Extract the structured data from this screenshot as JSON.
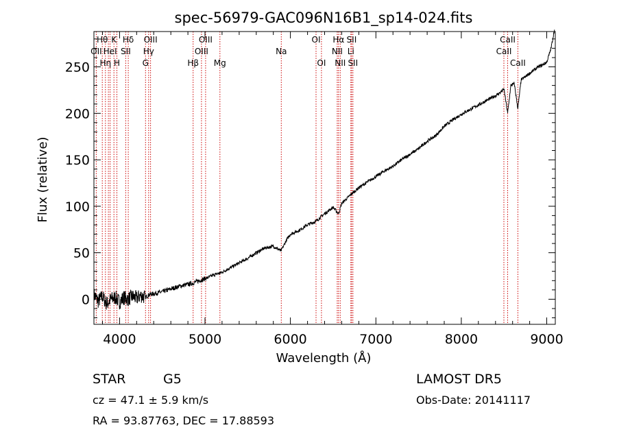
{
  "chart_data": {
    "type": "line",
    "title": "spec-56979-GAC096N16B1_sp14-024.fits",
    "xlabel": "Wavelength (Å)",
    "ylabel": "Flux (relative)",
    "xlim": [
      3700,
      9100
    ],
    "ylim": [
      -27,
      288
    ],
    "xticks": [
      4000,
      5000,
      6000,
      7000,
      8000,
      9000
    ],
    "yticks": [
      0,
      50,
      100,
      150,
      200,
      250
    ],
    "grid": false,
    "series": [
      {
        "points": [
          [
            3700,
            5
          ],
          [
            3750,
            -2
          ],
          [
            3800,
            3
          ],
          [
            3850,
            -5
          ],
          [
            3900,
            0
          ],
          [
            3950,
            2
          ],
          [
            4000,
            -3
          ],
          [
            4050,
            2
          ],
          [
            4100,
            0
          ],
          [
            4150,
            3
          ],
          [
            4200,
            1
          ],
          [
            4250,
            4
          ],
          [
            4300,
            2
          ],
          [
            4350,
            5
          ],
          [
            4400,
            6
          ],
          [
            4500,
            8
          ],
          [
            4600,
            11
          ],
          [
            4700,
            14
          ],
          [
            4800,
            16
          ],
          [
            4850,
            17
          ],
          [
            4900,
            19
          ],
          [
            5000,
            22
          ],
          [
            5100,
            26
          ],
          [
            5200,
            29
          ],
          [
            5300,
            34
          ],
          [
            5400,
            39
          ],
          [
            5500,
            44
          ],
          [
            5600,
            50
          ],
          [
            5700,
            55
          ],
          [
            5800,
            57
          ],
          [
            5890,
            52
          ],
          [
            5950,
            63
          ],
          [
            6000,
            70
          ],
          [
            6100,
            74
          ],
          [
            6200,
            80
          ],
          [
            6300,
            84
          ],
          [
            6400,
            92
          ],
          [
            6500,
            99
          ],
          [
            6563,
            92
          ],
          [
            6600,
            103
          ],
          [
            6700,
            112
          ],
          [
            6800,
            120
          ],
          [
            6900,
            126
          ],
          [
            7000,
            132
          ],
          [
            7100,
            138
          ],
          [
            7200,
            143
          ],
          [
            7300,
            150
          ],
          [
            7400,
            156
          ],
          [
            7500,
            162
          ],
          [
            7600,
            170
          ],
          [
            7700,
            176
          ],
          [
            7800,
            186
          ],
          [
            7900,
            193
          ],
          [
            8000,
            199
          ],
          [
            8100,
            204
          ],
          [
            8200,
            209
          ],
          [
            8300,
            214
          ],
          [
            8400,
            219
          ],
          [
            8450,
            222
          ],
          [
            8500,
            226
          ],
          [
            8542,
            200
          ],
          [
            8580,
            230
          ],
          [
            8620,
            232
          ],
          [
            8662,
            205
          ],
          [
            8700,
            236
          ],
          [
            8800,
            243
          ],
          [
            8900,
            250
          ],
          [
            8950,
            252
          ],
          [
            9000,
            255
          ],
          [
            9050,
            270
          ],
          [
            9090,
            290
          ]
        ]
      }
    ],
    "lines": [
      {
        "w": 3727,
        "label": "OII",
        "row": 1
      },
      {
        "w": 3798,
        "label": "Hθ",
        "row": 0
      },
      {
        "w": 3835,
        "label": "Hη",
        "row": 2
      },
      {
        "w": 3869,
        "label": "",
        "row": -1
      },
      {
        "w": 3889,
        "label": "HeI",
        "row": 1
      },
      {
        "w": 3934,
        "label": "K",
        "row": 0
      },
      {
        "w": 3969,
        "label": "H",
        "row": 2
      },
      {
        "w": 4072,
        "label": "SII",
        "row": 1
      },
      {
        "w": 4102,
        "label": "Hδ",
        "row": 0
      },
      {
        "w": 4304,
        "label": "G",
        "row": 2
      },
      {
        "w": 4340,
        "label": "Hγ",
        "row": 1
      },
      {
        "w": 4363,
        "label": "OIII",
        "row": 0
      },
      {
        "w": 4861,
        "label": "Hβ",
        "row": 2
      },
      {
        "w": 4959,
        "label": "OIII",
        "row": 1
      },
      {
        "w": 5007,
        "label": "OIII",
        "row": 0
      },
      {
        "w": 5175,
        "label": "Mg",
        "row": 2
      },
      {
        "w": 5893,
        "label": "Na",
        "row": 1
      },
      {
        "w": 6300,
        "label": "OI",
        "row": 0
      },
      {
        "w": 6363,
        "label": "OI",
        "row": 2
      },
      {
        "w": 6548,
        "label": "NII",
        "row": 1
      },
      {
        "w": 6563,
        "label": "Hα",
        "row": 0
      },
      {
        "w": 6583,
        "label": "NII",
        "row": 2
      },
      {
        "w": 6707,
        "label": "Li",
        "row": 1
      },
      {
        "w": 6716,
        "label": "SII",
        "row": 0
      },
      {
        "w": 6731,
        "label": "SII",
        "row": 2
      },
      {
        "w": 8498,
        "label": "CaII",
        "row": 1
      },
      {
        "w": 8542,
        "label": "CaII",
        "row": 0
      },
      {
        "w": 8662,
        "label": "CaII",
        "row": 2
      }
    ]
  },
  "footer": {
    "class": "STAR",
    "subclass": "G5",
    "redshift": "cz =  47.1 ± 5.9 km/s",
    "coords": "RA =  93.87763, DEC =  17.88593",
    "survey": "LAMOST  DR5",
    "obs_date": "Obs-Date: 20141117"
  },
  "colors": {
    "spectrum": "#000000",
    "line_markers": "#cc0000",
    "axes": "#000000"
  }
}
